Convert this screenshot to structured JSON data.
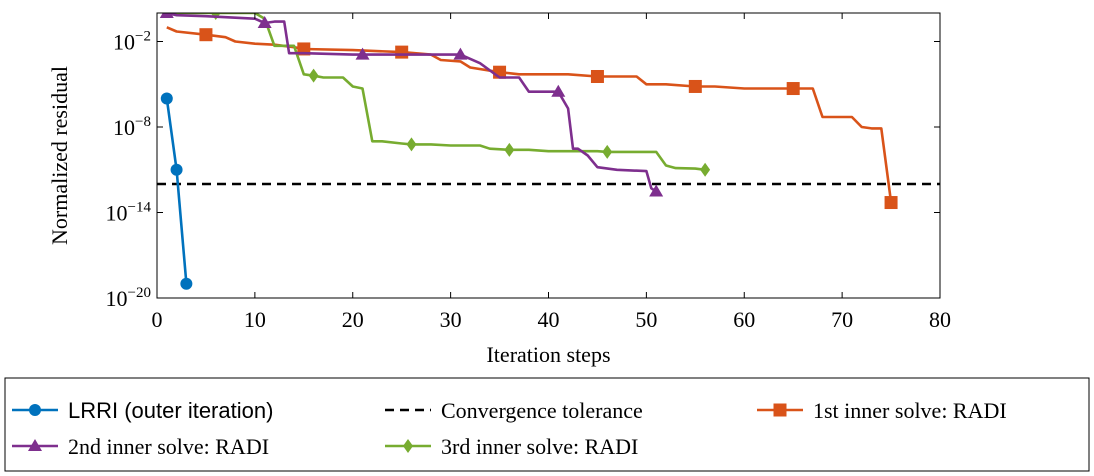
{
  "chart_data": {
    "type": "line",
    "xlabel": "Iteration steps",
    "ylabel": "Normalized residual",
    "xlim": [
      0,
      80
    ],
    "ylim": [
      1e-20,
      1
    ],
    "yscale": "log",
    "x_ticks": [
      0,
      10,
      20,
      30,
      40,
      50,
      60,
      70,
      80
    ],
    "y_ticks": [
      {
        "value": 0.01,
        "base": "10",
        "exp": "−2"
      },
      {
        "value": 1e-08,
        "base": "10",
        "exp": "−8"
      },
      {
        "value": 1e-14,
        "base": "10",
        "exp": "−14"
      },
      {
        "value": 1e-20,
        "base": "10",
        "exp": "−20"
      }
    ],
    "grid": false,
    "legend_position": "bottom",
    "tolerance": {
      "name": "Convergence tolerance",
      "value": 1e-12,
      "color": "#000000"
    },
    "series": [
      {
        "name": "LRRI (outer iteration)",
        "color": "#0072BD",
        "marker": "circle",
        "font": "sans",
        "x": [
          1,
          2,
          3
        ],
        "y": [
          1e-06,
          1e-11,
          1e-19
        ],
        "markers_at": [
          1,
          2,
          3
        ]
      },
      {
        "name": "2nd inner solve: RADI",
        "color": "#7E2F8E",
        "marker": "triangle",
        "font": "serif",
        "x": [
          1,
          2,
          5,
          10,
          11,
          12,
          13,
          13.5,
          15,
          20,
          21,
          25,
          30,
          31,
          33,
          35,
          37,
          38,
          40,
          41,
          42,
          42.5,
          43,
          44,
          45,
          47,
          50,
          50.5,
          51
        ],
        "y": [
          1,
          0.7,
          0.6,
          0.4,
          0.2,
          0.25,
          0.25,
          0.0015,
          0.0015,
          0.0012,
          0.0012,
          0.0012,
          0.0012,
          0.0012,
          0.0003,
          3e-05,
          3e-05,
          3e-06,
          3e-06,
          3e-06,
          2e-07,
          3e-10,
          3e-10,
          1e-10,
          1.5e-11,
          1e-11,
          8e-12,
          5e-13,
          3e-13
        ],
        "markers_at": [
          1,
          11,
          21,
          31,
          41,
          51
        ]
      },
      {
        "name": "1st inner solve: RADI",
        "color": "#D95319",
        "marker": "square",
        "font": "serif",
        "x": [
          1,
          2,
          5,
          7,
          8,
          10,
          12,
          14,
          15,
          20,
          25,
          28,
          29,
          31,
          32,
          35,
          37,
          42,
          45,
          47,
          49,
          50,
          52,
          55,
          57,
          60,
          65,
          66,
          67,
          68,
          70,
          71,
          72,
          73,
          74,
          75
        ],
        "y": [
          0.1,
          0.05,
          0.03,
          0.02,
          0.01,
          0.007,
          0.006,
          0.004,
          0.003,
          0.0025,
          0.0018,
          0.0012,
          0.0005,
          0.0004,
          0.00015,
          7e-05,
          5e-05,
          5e-05,
          3.5e-05,
          3.5e-05,
          3.5e-05,
          1e-05,
          1e-05,
          7e-06,
          7e-06,
          5e-06,
          5e-06,
          5e-06,
          5e-06,
          5e-08,
          5e-08,
          5e-08,
          1e-08,
          8e-09,
          8e-09,
          5e-14
        ],
        "markers_at": [
          5,
          15,
          25,
          35,
          45,
          55,
          65,
          75
        ]
      },
      {
        "name": "3rd inner solve: RADI",
        "color": "#77AC30",
        "marker": "diamond",
        "font": "serif",
        "x": [
          1,
          5,
          10,
          11,
          12,
          14,
          15,
          16,
          17,
          19,
          20,
          21,
          22,
          23,
          25,
          26,
          28,
          30,
          33,
          34,
          36,
          38,
          40,
          42,
          45,
          46,
          48,
          51,
          52,
          53,
          55,
          56
        ],
        "y": [
          1,
          1,
          1,
          0.4,
          0.005,
          0.005,
          5e-05,
          4e-05,
          3e-05,
          3e-05,
          7e-06,
          5e-06,
          1e-09,
          1e-09,
          7e-10,
          6e-10,
          6e-10,
          5e-10,
          5e-10,
          3e-10,
          2.5e-10,
          2.5e-10,
          2e-10,
          2e-10,
          2e-10,
          1.8e-10,
          1.8e-10,
          1.8e-10,
          2e-11,
          1.3e-11,
          1.2e-11,
          1e-11
        ],
        "markers_at": [
          6,
          16,
          26,
          36,
          46,
          56
        ]
      }
    ],
    "legend_rows": [
      [
        "LRRI (outer iteration)",
        "Convergence tolerance",
        "1st inner solve: RADI"
      ],
      [
        "2nd inner solve: RADI",
        "3rd inner solve: RADI"
      ]
    ]
  }
}
